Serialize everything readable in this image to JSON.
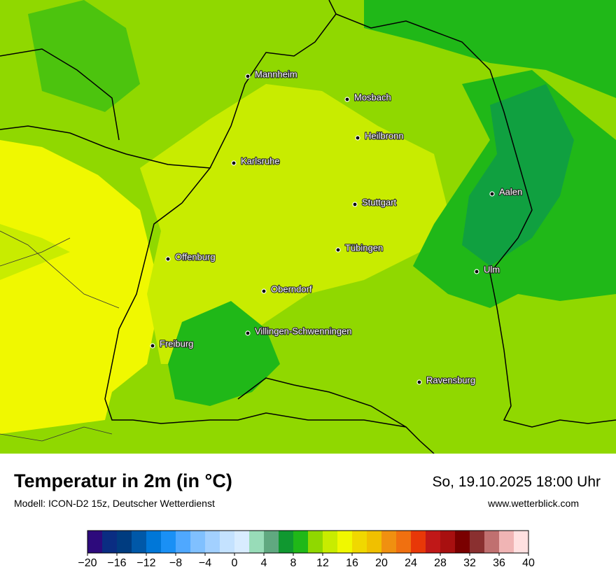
{
  "map": {
    "cities": [
      "Mannheim",
      "Mosbach",
      "Heilbronn",
      "Karlsruhe",
      "Aalen",
      "Stuttgart",
      "Tübingen",
      "Offenburg",
      "Ulm",
      "Oberndorf",
      "Villingen-Schwenningen",
      "Freiburg",
      "Ravensburg"
    ]
  },
  "legend": {
    "title": "Temperatur in 2m (in °C)",
    "model": "Modell: ICON-D2 15z, Deutscher Wetterdienst",
    "datetime": "So, 19.10.2025 18:00 Uhr",
    "website": "www.wetterblick.com"
  },
  "colorbar": {
    "range": [
      -20,
      40
    ],
    "ticks": [
      {
        "value": -20,
        "label": "−20"
      },
      {
        "value": -16,
        "label": "−16"
      },
      {
        "value": -12,
        "label": "−12"
      },
      {
        "value": -8,
        "label": "−8"
      },
      {
        "value": -4,
        "label": "−4"
      },
      0,
      4,
      8,
      12,
      16,
      20,
      24,
      28,
      32,
      36,
      40
    ],
    "colors": [
      "#2d0a7c",
      "#0a2d82",
      "#003c80",
      "#0058a8",
      "#0077d8",
      "#1a90f5",
      "#4fa8ff",
      "#80c0ff",
      "#a2d0ff",
      "#c4e2ff",
      "#d8ecff",
      "#98dcb8",
      "#60a880",
      "#109830",
      "#20b818",
      "#90d800",
      "#c8ec00",
      "#f0f800",
      "#f0d800",
      "#f0c000",
      "#f09010",
      "#f07010",
      "#e83808",
      "#c01818",
      "#a81010",
      "#7a0000",
      "#8a3030",
      "#c07070",
      "#f0b4b4",
      "#ffe0e0"
    ]
  }
}
